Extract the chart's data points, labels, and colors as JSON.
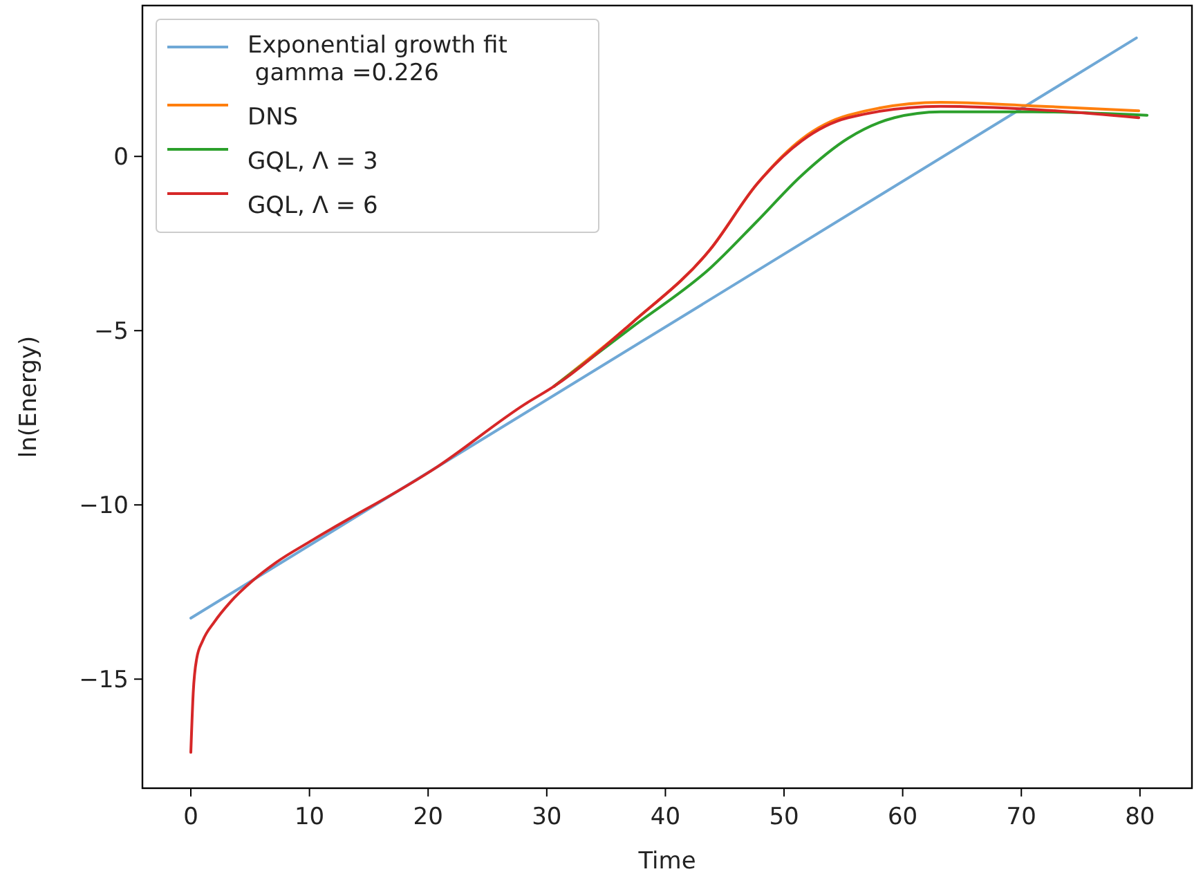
{
  "chart_data": {
    "type": "line",
    "xlabel": "Time",
    "ylabel": "ln(Energy)",
    "xlim": [
      -4.08,
      84.38
    ],
    "ylim": [
      -18.13,
      4.33
    ],
    "xticks": [
      0,
      10,
      20,
      30,
      40,
      50,
      60,
      70,
      80
    ],
    "yticks": [
      {
        "value": -15,
        "label": "−15"
      },
      {
        "value": -10,
        "label": "−10"
      },
      {
        "value": -5,
        "label": "−5"
      },
      0
    ],
    "legend": "top left",
    "grid": false,
    "series": [
      {
        "name": "Exponential growth fit\n gamma =0.226",
        "color": "#6fa8d6",
        "x": [
          0,
          79.7
        ],
        "values": [
          -13.25,
          3.4
        ]
      },
      {
        "name": "DNS",
        "color": "#ff7f0e",
        "x": [
          30.6,
          37.2,
          43.8,
          47.7,
          51.5,
          55.4,
          63.2,
          71,
          79.9
        ],
        "values": [
          -6.6,
          -4.77,
          -2.66,
          -0.8,
          0.5,
          1.18,
          1.55,
          1.45,
          1.31
        ]
      },
      {
        "name": "GQL, Λ = 3",
        "color": "#2ca02c",
        "x": [
          30.6,
          37.2,
          43.8,
          47.7,
          51.5,
          55.4,
          59.3,
          63.2,
          71,
          80.6
        ],
        "values": [
          -6.6,
          -4.9,
          -3.2,
          -1.87,
          -0.54,
          0.52,
          1.11,
          1.28,
          1.28,
          1.18
        ]
      },
      {
        "name": "GQL, Λ = 6",
        "color": "#d62728",
        "x": [
          0,
          0.2,
          0.5,
          1,
          2,
          3.3,
          5.3,
          7.2,
          10.3,
          20.8,
          28.2,
          30.6,
          37.2,
          43.8,
          47.7,
          51.5,
          55.4,
          63.2,
          71,
          79.9
        ],
        "values": [
          -17.1,
          -15.4,
          -14.4,
          -13.9,
          -13.35,
          -12.8,
          -12.15,
          -11.65,
          -11.0,
          -8.9,
          -7.1,
          -6.6,
          -4.77,
          -2.66,
          -0.8,
          0.45,
          1.11,
          1.44,
          1.35,
          1.11
        ]
      }
    ]
  }
}
